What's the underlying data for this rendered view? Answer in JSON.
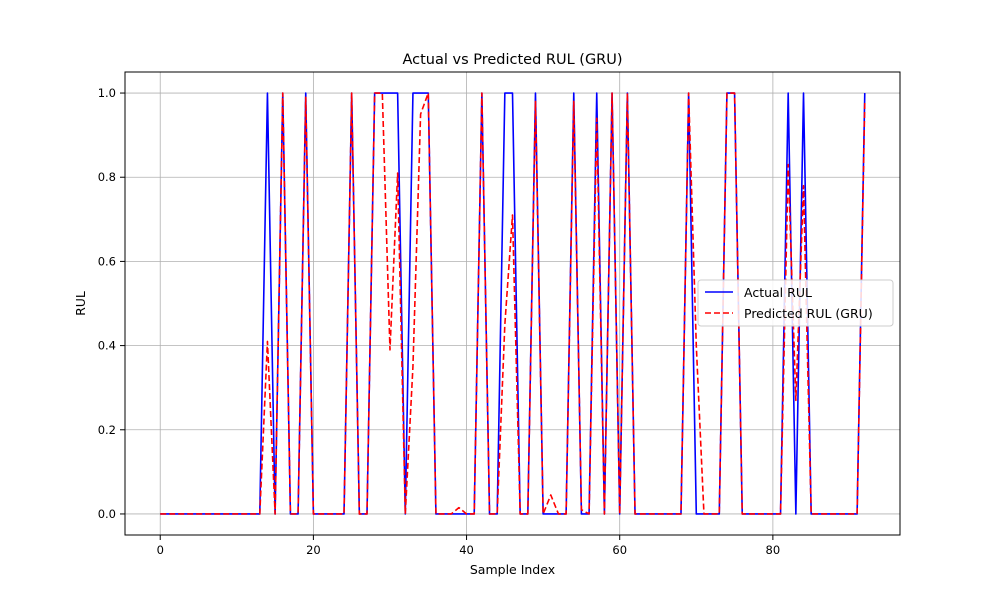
{
  "chart_data": {
    "type": "line",
    "title": "Actual vs Predicted RUL (GRU)",
    "xlabel": "Sample Index",
    "ylabel": "RUL",
    "xlim": [
      -4.6,
      96.6
    ],
    "ylim": [
      -0.05,
      1.05
    ],
    "xticks": [
      0,
      20,
      40,
      60,
      80
    ],
    "yticks": [
      0.0,
      0.2,
      0.4,
      0.6,
      0.8,
      1.0
    ],
    "xtick_labels": [
      "0",
      "20",
      "40",
      "60",
      "80"
    ],
    "ytick_labels": [
      "0.0",
      "0.2",
      "0.4",
      "0.6",
      "0.8",
      "1.0"
    ],
    "grid": true,
    "legend_position": "center-right",
    "x": [
      0,
      1,
      2,
      3,
      4,
      5,
      6,
      7,
      8,
      9,
      10,
      11,
      12,
      13,
      14,
      15,
      16,
      17,
      18,
      19,
      20,
      21,
      22,
      23,
      24,
      25,
      26,
      27,
      28,
      29,
      30,
      31,
      32,
      33,
      34,
      35,
      36,
      37,
      38,
      39,
      40,
      41,
      42,
      43,
      44,
      45,
      46,
      47,
      48,
      49,
      50,
      51,
      52,
      53,
      54,
      55,
      56,
      57,
      58,
      59,
      60,
      61,
      62,
      63,
      64,
      65,
      66,
      67,
      68,
      69,
      70,
      71,
      72,
      73,
      74,
      75,
      76,
      77,
      78,
      79,
      80,
      81,
      82,
      83,
      84,
      85,
      86,
      87,
      88,
      89,
      90,
      91,
      92
    ],
    "series": [
      {
        "name": "Actual RUL",
        "color": "#0000ff",
        "style": "solid",
        "values": [
          0,
          0,
          0,
          0,
          0,
          0,
          0,
          0,
          0,
          0,
          0,
          0,
          0,
          0,
          1,
          0,
          1,
          0,
          0,
          1,
          0,
          0,
          0,
          0,
          0,
          1,
          0,
          0,
          1,
          1,
          1,
          1,
          0,
          1,
          1,
          1,
          0,
          0,
          0,
          0,
          0,
          0,
          1,
          0,
          0,
          1,
          1,
          0,
          0,
          1,
          0,
          0,
          0,
          0,
          1,
          0,
          0,
          1,
          0,
          1,
          0,
          1,
          0,
          0,
          0,
          0,
          0,
          0,
          0,
          1,
          0,
          0,
          0,
          0,
          1,
          1,
          0,
          0,
          0,
          0,
          0,
          0,
          1,
          0,
          1,
          0,
          0,
          0,
          0,
          0,
          0,
          0,
          1
        ]
      },
      {
        "name": "Predicted RUL (GRU)",
        "color": "#ff0000",
        "style": "dashed",
        "values": [
          0,
          0,
          0,
          0,
          0,
          0,
          0,
          0,
          0,
          0,
          0,
          0,
          0,
          0,
          0.41,
          0,
          1,
          0,
          0,
          0.99,
          0,
          0,
          0,
          0,
          0,
          1,
          0,
          0,
          1,
          1,
          0.39,
          0.81,
          0,
          0.35,
          0.95,
          1,
          0,
          0,
          0,
          0.015,
          0,
          0,
          1,
          0,
          0,
          0.45,
          0.71,
          0,
          0,
          0.98,
          0,
          0.045,
          0,
          0,
          0.98,
          0.01,
          0,
          0.94,
          0,
          1,
          0,
          1,
          0,
          0,
          0,
          0,
          0,
          0,
          0,
          1,
          0.4,
          0,
          0,
          0,
          1,
          1,
          0,
          0,
          0,
          0,
          0,
          0,
          0.83,
          0.27,
          0.78,
          0,
          0,
          0,
          0,
          0,
          0,
          0,
          0.98
        ]
      }
    ]
  }
}
